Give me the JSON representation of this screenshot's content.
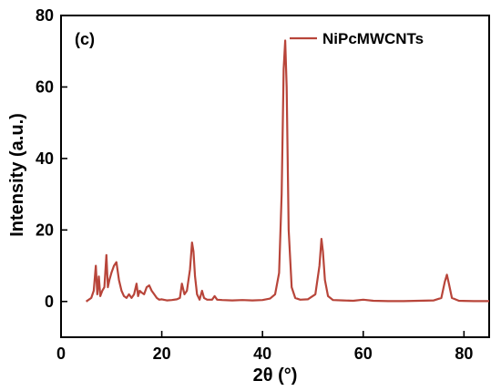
{
  "chart_data": {
    "type": "line",
    "panel_label": "(c)",
    "xlabel": "2θ (°)",
    "ylabel": "Intensity (a.u.)",
    "xlim": [
      0,
      85
    ],
    "ylim": [
      -10,
      80
    ],
    "x_ticks": [
      0,
      20,
      40,
      60,
      80
    ],
    "y_ticks": [
      0,
      20,
      40,
      60,
      80
    ],
    "grid": false,
    "legend_position": "top-right",
    "series": [
      {
        "name": "NiPcMWCNTs",
        "color": "#b8453a",
        "x": [
          5.0,
          6.0,
          6.5,
          6.9,
          7.2,
          7.5,
          7.8,
          8.2,
          8.6,
          9.0,
          9.3,
          9.6,
          10.0,
          10.5,
          11.0,
          11.5,
          12.0,
          12.5,
          13.0,
          13.5,
          14.0,
          14.5,
          15.0,
          15.3,
          15.6,
          16.0,
          16.5,
          17.0,
          17.5,
          18.0,
          18.5,
          19.0,
          19.5,
          20.0,
          21.0,
          22.0,
          23.0,
          23.6,
          24.0,
          24.5,
          25.0,
          25.6,
          26.0,
          26.3,
          26.6,
          27.0,
          27.5,
          28.0,
          28.4,
          29.0,
          30.0,
          30.5,
          31.0,
          32.0,
          34.0,
          36.0,
          38.0,
          40.0,
          41.5,
          42.5,
          43.3,
          43.8,
          44.2,
          44.5,
          44.8,
          45.2,
          45.8,
          46.5,
          47.5,
          49.0,
          50.5,
          51.3,
          51.7,
          52.0,
          52.4,
          53.0,
          54.0,
          56.0,
          58.0,
          60.0,
          62.0,
          65.0,
          68.0,
          71.0,
          74.0,
          75.5,
          76.2,
          76.6,
          77.0,
          77.6,
          79.0,
          82.0,
          85.0
        ],
        "y": [
          0,
          1,
          3,
          10,
          2,
          7,
          1.5,
          3,
          4,
          13,
          4,
          6,
          8,
          10,
          11,
          6,
          3,
          1.5,
          1,
          2,
          1,
          2,
          5,
          1.5,
          3,
          2.5,
          2,
          4,
          4.5,
          3,
          2,
          1,
          0.5,
          0.6,
          0.3,
          0.4,
          0.6,
          1,
          5,
          2,
          3,
          9,
          16.5,
          14,
          7,
          2,
          0.5,
          3,
          1,
          0.5,
          0.5,
          1.5,
          0.5,
          0.4,
          0.3,
          0.4,
          0.3,
          0.4,
          0.8,
          2,
          8,
          30,
          65,
          73,
          60,
          20,
          4,
          1,
          0.5,
          0.6,
          2,
          10,
          17.5,
          14,
          6,
          1.5,
          0.4,
          0.3,
          0.2,
          0.5,
          0.2,
          0.1,
          0.1,
          0.2,
          0.3,
          1,
          5.5,
          7.5,
          5,
          1,
          0.2,
          0.1,
          0.1
        ]
      }
    ]
  }
}
